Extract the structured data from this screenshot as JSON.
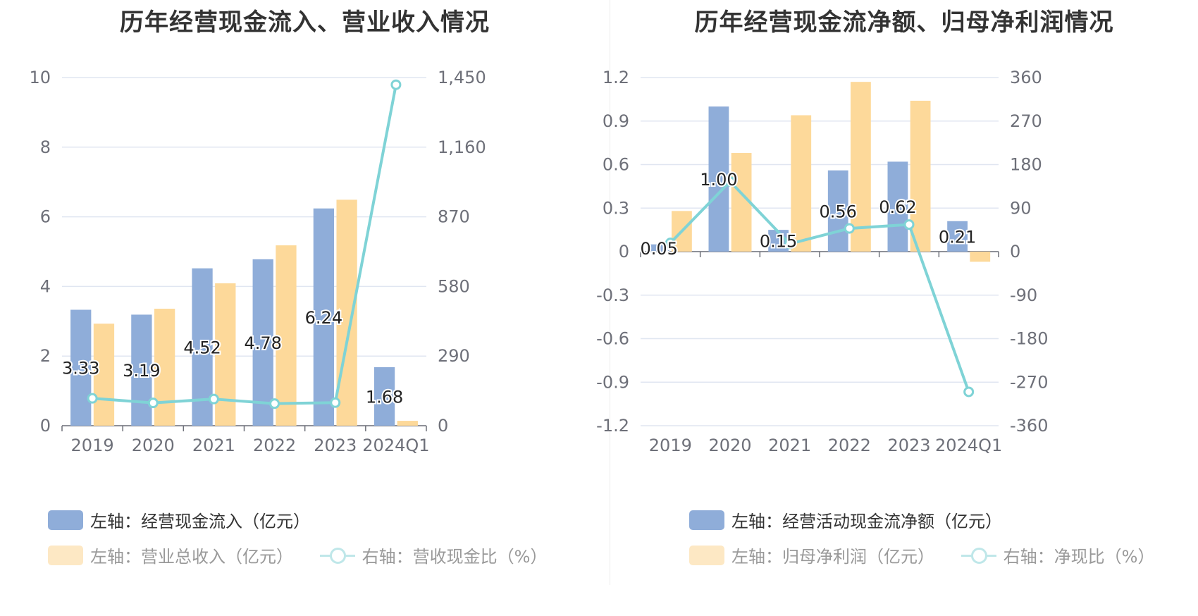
{
  "chart_data": [
    {
      "type": "bar",
      "title": "历年经营现金流入、营业收入情况",
      "categories": [
        "2019",
        "2020",
        "2021",
        "2022",
        "2023",
        "2024Q1"
      ],
      "left_axis": {
        "ticks": [
          "0",
          "2",
          "4",
          "6",
          "8",
          "10"
        ],
        "ylim": [
          0,
          10
        ]
      },
      "right_axis": {
        "ticks": [
          "0",
          "290",
          "580",
          "870",
          "1,160",
          "1,450"
        ],
        "ylim": [
          0,
          1450
        ]
      },
      "series": [
        {
          "name": "左轴：经营现金流入（亿元）",
          "kind": "bar",
          "axis": "left",
          "color": "#8fadd9",
          "values": [
            3.33,
            3.19,
            4.52,
            4.78,
            6.24,
            1.68
          ],
          "labels": [
            "3.33",
            "3.19",
            "4.52",
            "4.78",
            "6.24",
            "1.68"
          ]
        },
        {
          "name": "左轴：营业总收入（亿元）",
          "kind": "bar",
          "axis": "left",
          "color": "#fdd99a",
          "values": [
            2.93,
            3.36,
            4.09,
            5.18,
            6.49,
            0.14
          ]
        },
        {
          "name": "右轴：营收现金比（%）",
          "kind": "line",
          "axis": "right",
          "color": "#7fd3d6",
          "values": [
            114,
            95,
            111,
            92,
            96,
            1420
          ]
        }
      ],
      "legend_position": "bottom-left",
      "grid": true
    },
    {
      "type": "bar",
      "title": "历年经营现金流净额、归母净利润情况",
      "categories": [
        "2019",
        "2020",
        "2021",
        "2022",
        "2023",
        "2024Q1"
      ],
      "left_axis": {
        "ticks": [
          "-1.2",
          "-0.9",
          "-0.6",
          "-0.3",
          "0",
          "0.3",
          "0.6",
          "0.9",
          "1.2"
        ],
        "ylim": [
          -1.2,
          1.2
        ]
      },
      "right_axis": {
        "ticks": [
          "-360",
          "-270",
          "-180",
          "-90",
          "0",
          "90",
          "180",
          "270",
          "360"
        ],
        "ylim": [
          -360,
          360
        ]
      },
      "series": [
        {
          "name": "左轴：经营活动现金流净额（亿元）",
          "kind": "bar",
          "axis": "left",
          "color": "#8fadd9",
          "values": [
            0.05,
            1.0,
            0.15,
            0.56,
            0.62,
            0.21
          ],
          "labels": [
            "0.05",
            "1.00",
            "0.15",
            "0.56",
            "0.62",
            "0.21"
          ]
        },
        {
          "name": "左轴：归母净利润（亿元）",
          "kind": "bar",
          "axis": "left",
          "color": "#fdd99a",
          "values": [
            0.28,
            0.68,
            0.94,
            1.17,
            1.04,
            -0.07
          ]
        },
        {
          "name": "右轴：净现比（%）",
          "kind": "line",
          "axis": "right",
          "color": "#7fd3d6",
          "values": [
            18,
            145,
            16,
            48,
            56,
            -290
          ]
        }
      ],
      "legend_position": "bottom-left",
      "grid": true
    }
  ]
}
